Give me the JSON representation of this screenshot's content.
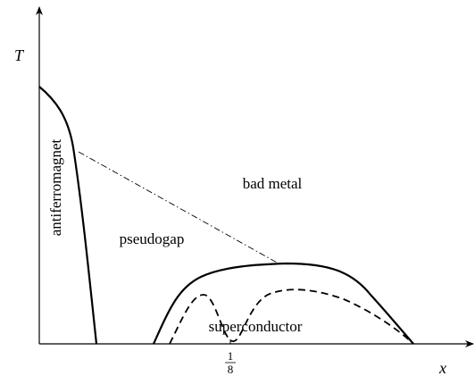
{
  "axes": {
    "y_label": "T",
    "x_label": "x",
    "x_tick": {
      "numerator": "1",
      "denominator": "8"
    }
  },
  "regions": {
    "antiferromagnet": "antiferromagnet",
    "pseudogap": "pseudogap",
    "bad_metal": "bad metal",
    "superconductor": "superconductor"
  }
}
